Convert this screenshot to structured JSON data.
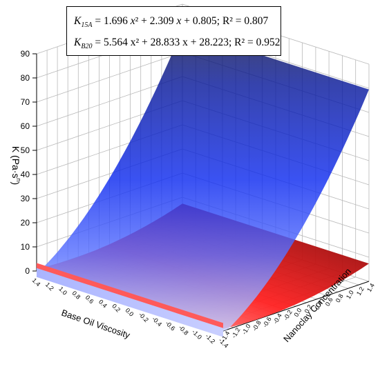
{
  "chart_data": {
    "type": "surface3d",
    "equations": [
      {
        "key": "K",
        "subscript": "15A",
        "eq1": " = 1.696 ",
        "x2": "x",
        "sq": "²",
        "eq2": " + 2.309 ",
        "x1": "x",
        "eq3": " + 0.805; R² = 0.807",
        "a": 1.696,
        "b": 2.309,
        "c": 0.805,
        "r2": 0.807,
        "color": "#ff1a1a"
      },
      {
        "key": "K",
        "subscript": "B20",
        "eq1": " = 5.564 ",
        "x2": "x",
        "sq": "²",
        "eq2": " + 28.833 ",
        "x1": "x",
        "eq3": " + 28.223; R² = 0.952",
        "a": 5.564,
        "b": 28.833,
        "c": 28.223,
        "r2": 0.952,
        "color": "#1a1aff"
      }
    ],
    "zlabel": "K (Pa·s",
    "zlabel_sup": "n",
    "zlabel_close": ")",
    "xlabel": "Base Oil Viscosity",
    "ylabel": "Nanoclay Concentration",
    "zticks": [
      "0",
      "10",
      "20",
      "30",
      "40",
      "50",
      "60",
      "70",
      "80",
      "90"
    ],
    "xticks": [
      "1.4",
      "1.2",
      "1.0",
      "0.8",
      "0.6",
      "0.4",
      "0.2",
      "0.0",
      "-0.2",
      "-0.4",
      "-0.6",
      "-0.8",
      "-1.0",
      "-1.2",
      "-1.4"
    ],
    "yticks": [
      "-1.4",
      "-1.2",
      "-1.0",
      "-0.8",
      "-0.6",
      "-0.4",
      "-0.2",
      "0.0",
      "0.2",
      "0.4",
      "0.6",
      "0.8",
      "1.0",
      "1.2",
      "1.4"
    ],
    "zlim": [
      0,
      90
    ],
    "xlim": [
      -1.4,
      1.4
    ],
    "ylim": [
      -1.4,
      1.4
    ],
    "grid": true
  }
}
